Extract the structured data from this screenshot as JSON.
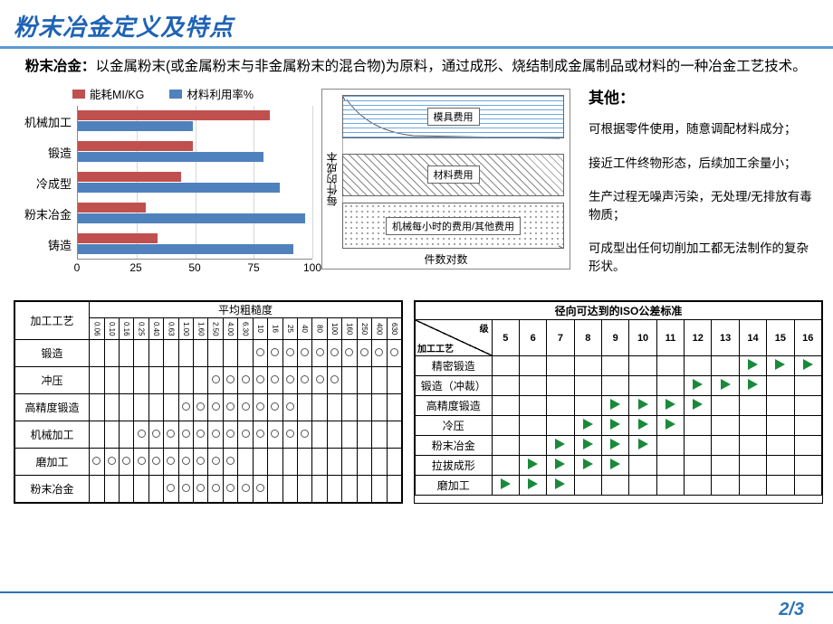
{
  "title": "粉末冶金定义及特点",
  "intro_lead": "粉末冶金：",
  "intro_body": "以金属粉末(或金属粉末与非金属粉末的混合物)为原料，通过成形、烧结制成金属制品或材料的一种冶金工艺技术。",
  "bar_chart": {
    "series_a_label": "能耗MI/KG",
    "series_b_label": "材料利用率%",
    "series_a_color": "#c0504d",
    "series_b_color": "#4f81bd",
    "grid_color": "#d6d6d6",
    "xticks": [
      "0",
      "25",
      "50",
      "75",
      "100"
    ],
    "xtick_pos_pct": [
      0,
      25,
      50,
      75,
      100
    ],
    "categories": [
      "机械加工",
      "锻造",
      "冷成型",
      "粉末冶金",
      "铸造"
    ],
    "a_values": [
      82,
      49,
      44,
      29,
      34
    ],
    "b_values": [
      49,
      79,
      86,
      97,
      92
    ]
  },
  "cost_chart": {
    "ylabel": "每件的成本",
    "xlabel": "件数对数",
    "bands": [
      {
        "label": "模具费用",
        "top_pct": 0,
        "height_pct": 28,
        "pattern": "hlines"
      },
      {
        "label": "材料费用",
        "top_pct": 38,
        "height_pct": 28,
        "pattern": "diag"
      },
      {
        "label": "机械每小时的费用/其他费用",
        "top_pct": 70,
        "height_pct": 30,
        "pattern": "dots"
      }
    ]
  },
  "other_heading": "其他：",
  "other_points": [
    "可根据零件使用，随意调配材料成分；",
    "接近工件终物形态，后续加工余量小；",
    "生产过程无噪声污染，无处理/无排放有毒物质；",
    "可成型出任何切削加工都无法制作的复杂形状。"
  ],
  "table1": {
    "title": "平均粗糙度",
    "proc_header": "加工工艺",
    "cols": [
      "0.06",
      "0.10",
      "0.16",
      "0.25",
      "0.40",
      "0.63",
      "1.00",
      "1.60",
      "2.50",
      "4.00",
      "6.30",
      "10",
      "16",
      "25",
      "40",
      "80",
      "100",
      "160",
      "250",
      "400",
      "630"
    ],
    "rows": [
      {
        "proc": "锻造",
        "marks": [
          0,
          0,
          0,
          0,
          0,
          0,
          0,
          0,
          0,
          0,
          0,
          1,
          1,
          1,
          1,
          1,
          1,
          1,
          1,
          1,
          1
        ]
      },
      {
        "proc": "冲压",
        "marks": [
          0,
          0,
          0,
          0,
          0,
          0,
          0,
          0,
          1,
          1,
          1,
          1,
          1,
          1,
          1,
          1,
          1,
          0,
          0,
          0,
          0
        ]
      },
      {
        "proc": "高精度锻造",
        "marks": [
          0,
          0,
          0,
          0,
          0,
          0,
          1,
          1,
          1,
          1,
          1,
          1,
          1,
          1,
          0,
          0,
          0,
          0,
          0,
          0,
          0
        ]
      },
      {
        "proc": "机械加工",
        "marks": [
          0,
          0,
          0,
          1,
          1,
          1,
          1,
          1,
          1,
          1,
          1,
          1,
          1,
          1,
          1,
          0,
          0,
          0,
          0,
          0,
          0
        ]
      },
      {
        "proc": "磨加工",
        "marks": [
          1,
          1,
          1,
          1,
          1,
          1,
          1,
          1,
          1,
          1,
          0,
          0,
          0,
          0,
          0,
          0,
          0,
          0,
          0,
          0,
          0
        ]
      },
      {
        "proc": "粉末冶金",
        "marks": [
          0,
          0,
          0,
          0,
          0,
          1,
          1,
          1,
          1,
          1,
          1,
          1,
          0,
          0,
          0,
          0,
          0,
          0,
          0,
          0,
          0
        ]
      }
    ]
  },
  "table2": {
    "title": "径向可达到的ISO公差标准",
    "proc_header": "加工工艺",
    "level_label": "级",
    "cols": [
      "5",
      "6",
      "7",
      "8",
      "9",
      "10",
      "11",
      "12",
      "13",
      "14",
      "15",
      "16"
    ],
    "rows": [
      {
        "proc": "精密锻造",
        "marks": [
          0,
          0,
          0,
          0,
          0,
          0,
          0,
          0,
          0,
          1,
          1,
          1
        ]
      },
      {
        "proc": "锻造（冲裁）",
        "marks": [
          0,
          0,
          0,
          0,
          0,
          0,
          0,
          1,
          1,
          1,
          0,
          0
        ]
      },
      {
        "proc": "高精度锻造",
        "marks": [
          0,
          0,
          0,
          0,
          1,
          1,
          1,
          1,
          0,
          0,
          0,
          0
        ]
      },
      {
        "proc": "冷压",
        "marks": [
          0,
          0,
          0,
          1,
          1,
          1,
          1,
          0,
          0,
          0,
          0,
          0
        ]
      },
      {
        "proc": "粉末冶金",
        "marks": [
          0,
          0,
          1,
          1,
          1,
          1,
          0,
          0,
          0,
          0,
          0,
          0
        ]
      },
      {
        "proc": "拉拔成形",
        "marks": [
          0,
          1,
          1,
          1,
          1,
          0,
          0,
          0,
          0,
          0,
          0,
          0
        ]
      },
      {
        "proc": "磨加工",
        "marks": [
          1,
          1,
          1,
          0,
          0,
          0,
          0,
          0,
          0,
          0,
          0,
          0
        ]
      }
    ]
  },
  "page": "2/3"
}
